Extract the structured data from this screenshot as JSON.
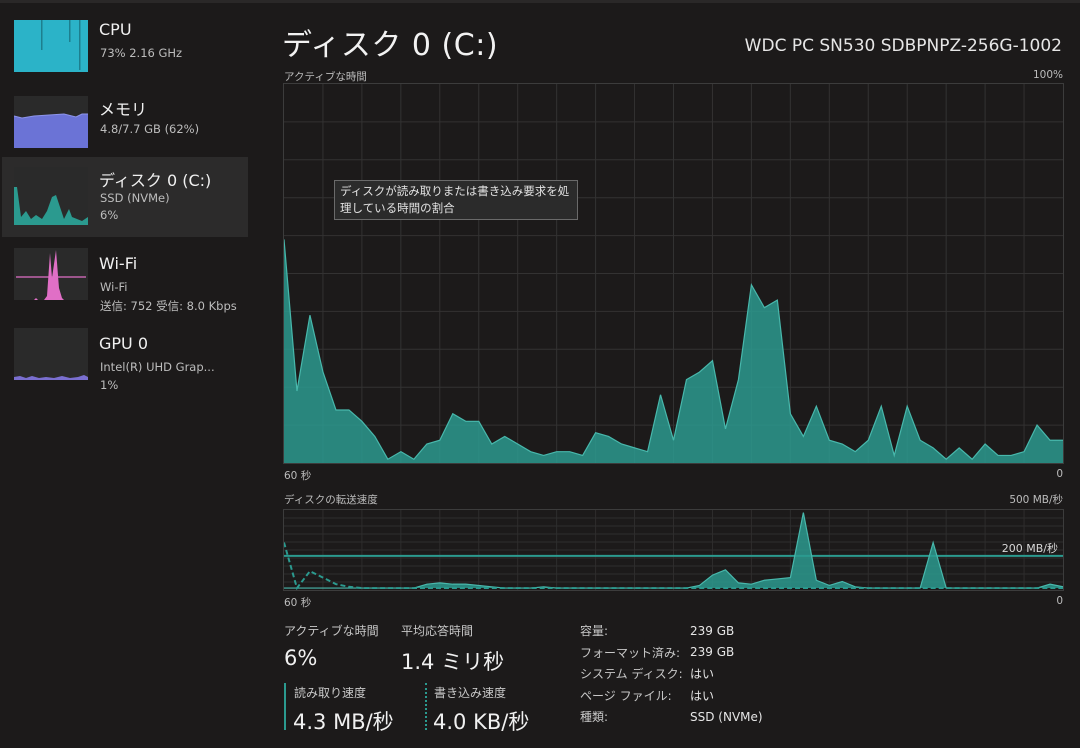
{
  "sidebar": {
    "items": [
      {
        "title": "CPU",
        "line1": "73%  2.16 GHz",
        "line2": "",
        "color": "#2bb3c8",
        "selected": false
      },
      {
        "title": "メモリ",
        "line1": "4.8/7.7 GB (62%)",
        "line2": "",
        "color": "#6b73d6",
        "selected": false
      },
      {
        "title": "ディスク 0 (C:)",
        "line1": "SSD (NVMe)",
        "line2": "6%",
        "color": "#2b9a8f",
        "selected": true
      },
      {
        "title": "Wi-Fi",
        "line1": "Wi-Fi",
        "line2": "送信: 752  受信: 8.0 Kbps",
        "color": "#e06fc6",
        "selected": false
      },
      {
        "title": "GPU 0",
        "line1": "Intel(R) UHD Grap...",
        "line2": "1%",
        "color": "#7a6fd0",
        "selected": false
      }
    ]
  },
  "main": {
    "title": "ディスク 0 (C:)",
    "device": "WDC PC SN530 SDBPNPZ-256G-1002",
    "tooltip": "ディスクが読み取りまたは書き込み要求を処理している時間の割合"
  },
  "chart_data": [
    {
      "type": "area",
      "title": "アクティブな時間",
      "ymax_label": "100%",
      "xlabel_left": "60 秒",
      "xlabel_right": "0",
      "ylim": [
        0,
        100
      ],
      "grid": true,
      "color": "#2b9a8f",
      "x": [
        60,
        59,
        58,
        57,
        56,
        55,
        54,
        53,
        52,
        51,
        50,
        49,
        48,
        47,
        46,
        45,
        44,
        43,
        42,
        41,
        40,
        39,
        38,
        37,
        36,
        35,
        34,
        33,
        32,
        31,
        30,
        29,
        28,
        27,
        26,
        25,
        24,
        23,
        22,
        21,
        20,
        19,
        18,
        17,
        16,
        15,
        14,
        13,
        12,
        11,
        10,
        9,
        8,
        7,
        6,
        5,
        4,
        3,
        2,
        1,
        0
      ],
      "values": [
        59,
        19,
        39,
        24,
        14,
        14,
        11,
        7,
        1,
        3,
        1,
        5,
        6,
        13,
        11,
        11,
        5,
        7,
        5,
        3,
        2,
        3,
        3,
        2,
        8,
        7,
        5,
        4,
        3,
        18,
        6,
        22,
        24,
        27,
        9,
        22,
        47,
        41,
        43,
        13,
        7,
        15,
        6,
        5,
        3,
        6,
        15,
        2,
        15,
        6,
        4,
        1,
        4,
        1,
        5,
        2,
        2,
        3,
        10,
        6,
        6
      ]
    },
    {
      "type": "area",
      "title": "ディスクの転送速度",
      "ymax_label": "500 MB/秒",
      "reference_line_label": "200 MB/秒",
      "xlabel_left": "60 秒",
      "xlabel_right": "0",
      "grid": true,
      "series": [
        {
          "name": "読み取り速度",
          "style": "solid-fill",
          "color": "#2b9a8f",
          "values": [
            0,
            0,
            0,
            0,
            0,
            0,
            0,
            0,
            0,
            0,
            0,
            3,
            4,
            3,
            3,
            2,
            1,
            0,
            0,
            0,
            1,
            0,
            0,
            0,
            0,
            0,
            0,
            0,
            0,
            0,
            0,
            0,
            2,
            10,
            14,
            4,
            3,
            6,
            7,
            8,
            58,
            6,
            2,
            5,
            1,
            0,
            0,
            0,
            0,
            0,
            35,
            0,
            0,
            0,
            0,
            0,
            0,
            0,
            0,
            3,
            1
          ]
        },
        {
          "name": "書き込み速度",
          "style": "dashed",
          "color": "#2b9a8f",
          "values": [
            35,
            0,
            13,
            8,
            3,
            1,
            0,
            0,
            0,
            0,
            0,
            0,
            0,
            0,
            0,
            0,
            0,
            0,
            0,
            0,
            0,
            0,
            0,
            0,
            0,
            0,
            0,
            0,
            0,
            0,
            0,
            0,
            0,
            0,
            0,
            0,
            0,
            0,
            0,
            0,
            0,
            0,
            0,
            0,
            0,
            0,
            0,
            0,
            0,
            0,
            0,
            0,
            0,
            0,
            0,
            0,
            0,
            0,
            0,
            0,
            0
          ]
        }
      ]
    }
  ],
  "stats": {
    "active_time_label": "アクティブな時間",
    "active_time_value": "6%",
    "avg_response_label": "平均応答時間",
    "avg_response_value": "1.4 ミリ秒",
    "read_label": "読み取り速度",
    "read_value": "4.3 MB/秒",
    "write_label": "書き込み速度",
    "write_value": "4.0 KB/秒"
  },
  "properties": [
    {
      "key": "容量:",
      "value": "239 GB"
    },
    {
      "key": "フォーマット済み:",
      "value": "239 GB"
    },
    {
      "key": "システム ディスク:",
      "value": "はい"
    },
    {
      "key": "ページ ファイル:",
      "value": "はい"
    },
    {
      "key": "種類:",
      "value": "SSD (NVMe)"
    }
  ]
}
